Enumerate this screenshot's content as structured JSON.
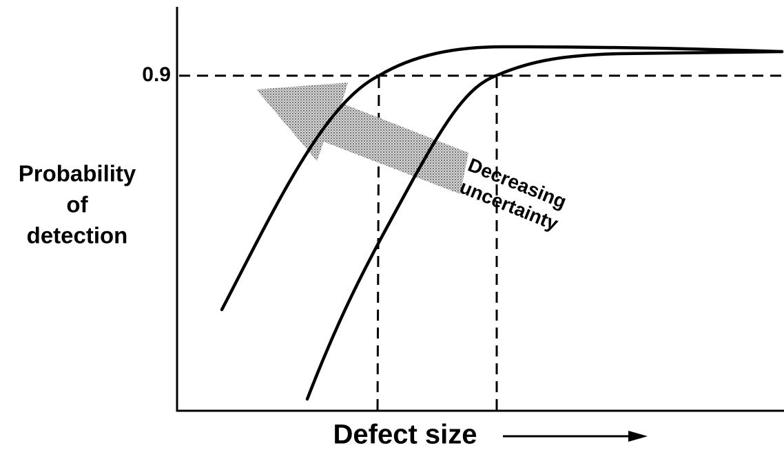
{
  "y_label": [
    "Probability",
    "of",
    "detection"
  ],
  "tick_label": "0.9",
  "x_label": "Defect size",
  "annotation": [
    "Decreasing",
    "uncertainty"
  ]
}
